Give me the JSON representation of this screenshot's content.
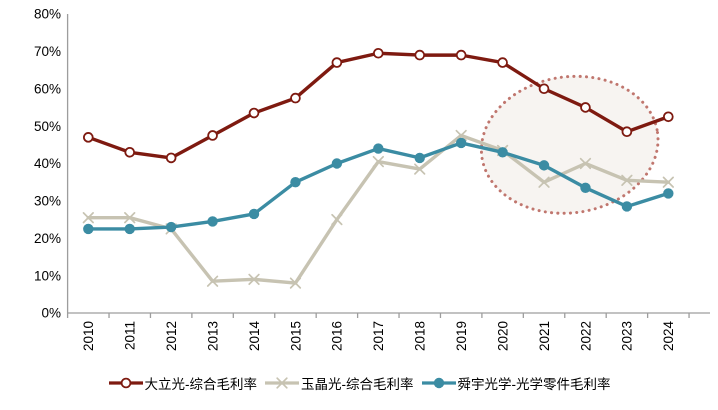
{
  "chart_data": {
    "type": "line",
    "title": "",
    "xlabel": "",
    "ylabel": "",
    "x_labels": [
      "2010",
      "2011",
      "2012",
      "2013",
      "2014",
      "2015",
      "2016",
      "2017",
      "2018",
      "2019",
      "2020",
      "2021",
      "2022",
      "2023",
      "2024"
    ],
    "ytick_labels": [
      "0%",
      "10%",
      "20%",
      "30%",
      "40%",
      "50%",
      "60%",
      "70%",
      "80%"
    ],
    "ylim": [
      0,
      80
    ],
    "grid": false,
    "legend_position": "bottom",
    "axis_color": "#9D9D9D",
    "text_color": "#000000",
    "series": [
      {
        "name": "大立光-综合毛利率",
        "marker": "open-circle",
        "color": "#7E1A10",
        "values": [
          47,
          43,
          41.5,
          47.5,
          53.5,
          57.5,
          67,
          69.5,
          69,
          69,
          67,
          60,
          55,
          48.5,
          52.5
        ]
      },
      {
        "name": "玉晶光-综合毛利率",
        "marker": "x",
        "color": "#C7C3B2",
        "values": [
          25.5,
          25.5,
          22.5,
          8.5,
          9,
          8,
          25,
          40.5,
          38.5,
          47.5,
          43.5,
          35,
          40,
          35.5,
          35
        ]
      },
      {
        "name": "舜宇光学-光学零件毛利率",
        "marker": "filled-circle",
        "color": "#3B8CA3",
        "values": [
          22.5,
          22.5,
          23,
          24.5,
          26.5,
          35,
          40,
          44,
          41.5,
          45.5,
          43,
          39.5,
          33.5,
          28.5,
          32
        ]
      }
    ],
    "annotation": {
      "shape": "dotted-ellipse",
      "center_x_index": 11.62,
      "center_value": 45,
      "rx_x_units": 2.14,
      "ry_value_units": 18.2,
      "rotate_deg": -8,
      "stroke": "#C0766E",
      "fill": "rgba(242,236,231,0.6)"
    }
  }
}
